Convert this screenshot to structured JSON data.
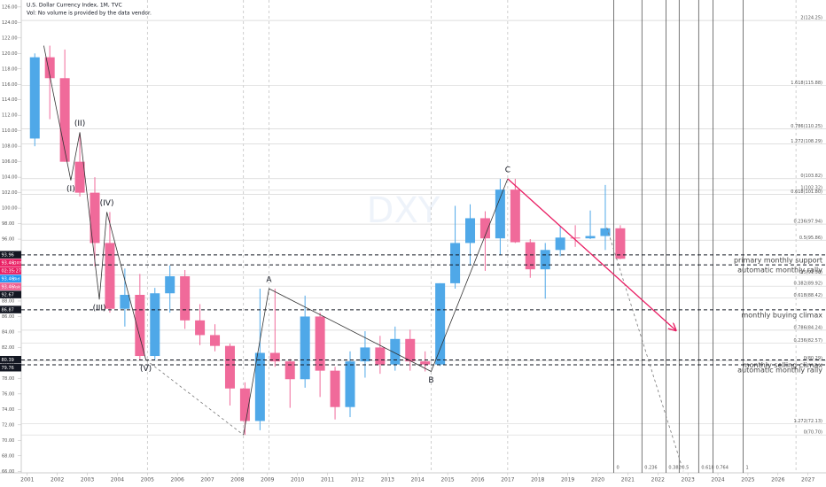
{
  "chart_data": {
    "type": "candlestick",
    "title": "U.S. Dollar Currency Index, 1M, TVC",
    "subtitle": "Vol: No volume is provided by the data vendor.",
    "watermark": "DXY",
    "up_color": "#4fa8e8",
    "down_color": "#f06a9a",
    "xlim": [
      2000.8,
      2027.6
    ],
    "ylim": [
      65.8,
      126.9
    ],
    "xticks": [
      2001,
      2002,
      2003,
      2004,
      2005,
      2006,
      2007,
      2008,
      2009,
      2010,
      2011,
      2012,
      2013,
      2014,
      2015,
      2016,
      2017,
      2018,
      2019,
      2020,
      2021,
      2022,
      2023,
      2024,
      2025,
      2026,
      2027
    ],
    "yticks": [
      {
        "value": 66,
        "label": "66.00"
      },
      {
        "value": 68,
        "label": "68.00"
      },
      {
        "value": 70,
        "label": "70.00"
      },
      {
        "value": 72,
        "label": "72.00"
      },
      {
        "value": 74,
        "label": "74.00"
      },
      {
        "value": 76,
        "label": "76.00"
      },
      {
        "value": 78,
        "label": "78.00"
      },
      {
        "value": 80,
        "label": "80.00"
      },
      {
        "value": 82,
        "label": "82.00"
      },
      {
        "value": 84,
        "label": "84.00"
      },
      {
        "value": 86,
        "label": "86.00"
      },
      {
        "value": 88,
        "label": "88.00"
      },
      {
        "value": 90,
        "label": "90.00"
      },
      {
        "value": 92,
        "label": "92.00"
      },
      {
        "value": 94,
        "label": "94.00"
      },
      {
        "value": 96,
        "label": "96.00"
      },
      {
        "value": 98,
        "label": "98.00"
      },
      {
        "value": 100,
        "label": "100.00"
      },
      {
        "value": 102,
        "label": "102.00"
      },
      {
        "value": 104,
        "label": "104.00"
      },
      {
        "value": 106,
        "label": "106.00"
      },
      {
        "value": 108,
        "label": "108.00"
      },
      {
        "value": 110,
        "label": "110.00"
      },
      {
        "value": 112,
        "label": "112.00"
      },
      {
        "value": 114,
        "label": "114.00"
      },
      {
        "value": 116,
        "label": "116.00"
      },
      {
        "value": 118,
        "label": "118.00"
      },
      {
        "value": 120,
        "label": "120.00"
      },
      {
        "value": 122,
        "label": "122.00"
      },
      {
        "value": 124,
        "label": "124.00"
      },
      {
        "value": 126,
        "label": "126.00"
      }
    ],
    "candles": {
      "x": [
        2001,
        2001.5,
        2002,
        2002.5,
        2003,
        2003.5,
        2004,
        2004.5,
        2005,
        2005.5,
        2006,
        2006.5,
        2007,
        2007.5,
        2008,
        2008.5,
        2009,
        2009.5,
        2010,
        2010.5,
        2011,
        2011.5,
        2012,
        2012.5,
        2013,
        2013.5,
        2014,
        2014.5,
        2015,
        2015.5,
        2016,
        2016.5,
        2017,
        2017.5,
        2018,
        2018.5,
        2019,
        2019.5,
        2020,
        2020.5
      ],
      "open": [
        109.0,
        119.5,
        116.8,
        106.0,
        102.0,
        95.5,
        87.0,
        88.8,
        80.9,
        89.0,
        91.2,
        85.5,
        83.6,
        82.2,
        76.7,
        72.5,
        81.3,
        80.2,
        77.9,
        86.0,
        79.0,
        74.3,
        80.2,
        82.0,
        79.8,
        83.1,
        80.2,
        79.8,
        90.3,
        95.5,
        98.7,
        96.1,
        102.4,
        95.6,
        92.1,
        94.6,
        96.2,
        96.1,
        96.4,
        97.4
      ],
      "high": [
        120.0,
        121.0,
        120.5,
        109.8,
        104.0,
        99.5,
        92.2,
        91.5,
        89.7,
        92.6,
        92.0,
        87.6,
        85.0,
        82.5,
        77.5,
        89.6,
        89.6,
        80.5,
        88.7,
        86.5,
        79.5,
        81.5,
        84.1,
        83.5,
        84.7,
        84.3,
        81.5,
        90.3,
        100.3,
        100.5,
        99.6,
        103.8,
        103.8,
        96.0,
        95.5,
        97.7,
        97.8,
        99.7,
        103.0,
        97.8
      ],
      "low": [
        108.0,
        111.5,
        106.0,
        101.5,
        92.5,
        86.5,
        84.7,
        80.4,
        80.4,
        86.5,
        84.4,
        82.3,
        81.5,
        74.5,
        70.7,
        71.3,
        79.5,
        74.2,
        76.8,
        75.6,
        72.7,
        73.0,
        78.1,
        78.6,
        79.0,
        79.0,
        78.9,
        79.6,
        89.6,
        92.6,
        91.9,
        94.0,
        95.5,
        91.0,
        88.3,
        93.8,
        95.0,
        96.0,
        94.6,
        93.4
      ],
      "close": [
        119.5,
        116.8,
        106.0,
        102.0,
        95.5,
        87.0,
        88.8,
        80.9,
        89.0,
        91.2,
        85.5,
        83.6,
        82.2,
        76.7,
        72.5,
        81.3,
        80.2,
        77.9,
        86.0,
        79.0,
        74.3,
        80.2,
        82.0,
        79.8,
        83.1,
        80.2,
        79.8,
        90.3,
        95.5,
        98.7,
        96.1,
        102.4,
        95.6,
        92.1,
        94.6,
        96.2,
        96.1,
        96.4,
        97.4,
        93.46
      ]
    },
    "fib_levels": [
      {
        "value": 124.25,
        "label": "2(124.25)"
      },
      {
        "value": 115.88,
        "label": "1.618(115.88)"
      },
      {
        "value": 110.25,
        "label": "0.786(110.25)"
      },
      {
        "value": 108.29,
        "label": "1.272(108.29)"
      },
      {
        "value": 103.82,
        "label": "0(103.82)"
      },
      {
        "value": 102.32,
        "label": "1(102.32)"
      },
      {
        "value": 101.8,
        "label": "0.618(101.80)"
      },
      {
        "value": 97.94,
        "label": "0.236(97.94)"
      },
      {
        "value": 95.86,
        "label": "0.5(95.86)"
      },
      {
        "value": 91.36,
        "label": "0.5(91.36)"
      },
      {
        "value": 89.92,
        "label": "0.382(89.92)"
      },
      {
        "value": 88.42,
        "label": "0.618(88.42)"
      },
      {
        "value": 84.24,
        "label": "0.786(84.24)"
      },
      {
        "value": 82.57,
        "label": "0.236(82.57)"
      },
      {
        "value": 80.29,
        "label": "0(80.29)"
      },
      {
        "value": 72.13,
        "label": "1.272(72.13)"
      },
      {
        "value": 70.7,
        "label": "0(70.70)"
      }
    ],
    "levels": [
      {
        "value": 93.96
      },
      {
        "value": 92.67,
        "labels": [
          "primary monthly support",
          "automatic monthly rally"
        ]
      },
      {
        "value": 86.87,
        "labels": [
          "monthly buying climax"
        ]
      },
      {
        "value": 80.39,
        "labels": [
          "monthly selling climax"
        ]
      },
      {
        "value": 79.76,
        "labels": [
          "automatic monthly rally"
        ]
      }
    ],
    "price_tags": [
      {
        "value": 93.96,
        "color": "#131722"
      },
      {
        "value": 93.46,
        "name": "DXY",
        "color": "#e91e63"
      },
      {
        "text": "02:35:27",
        "color": "#e91e63"
      },
      {
        "value": 93.46,
        "name": "Bid",
        "color": "#2196f3"
      },
      {
        "value": 93.46,
        "name": "Ask",
        "color": "#f06292"
      },
      {
        "value": 92.67,
        "color": "#131722"
      },
      {
        "value": 86.87,
        "color": "#131722"
      },
      {
        "value": 80.39,
        "color": "#131722"
      },
      {
        "value": 79.76,
        "color": "#131722"
      }
    ],
    "wave_lines": [
      {
        "style": "solid",
        "x": [
          2001.55,
          2002.45,
          2002.75,
          2003.4,
          2003.65,
          2004.95
        ],
        "y": [
          121.0,
          103.6,
          109.8,
          88.2,
          99.5,
          80.4
        ],
        "labels": [
          null,
          "(I)",
          "(II)",
          "(III)",
          "(IV)",
          "(V)"
        ]
      },
      {
        "style": "dashed",
        "x": [
          2004.95,
          2008.2
        ],
        "y": [
          80.4,
          70.7
        ],
        "labels": [
          null,
          null
        ]
      },
      {
        "style": "solid",
        "x": [
          2008.2,
          2009.05,
          2014.45,
          2017.0
        ],
        "y": [
          70.7,
          89.6,
          78.9,
          103.8
        ],
        "labels": [
          null,
          "A",
          "B",
          "C"
        ]
      }
    ],
    "arrow": {
      "color": "#e91e63",
      "x": [
        2017.0,
        2022.6
      ],
      "y": [
        103.8,
        84.2
      ]
    },
    "projection": {
      "x": [
        2020.3,
        2022.85
      ],
      "y": [
        97.5,
        66.0
      ]
    },
    "separators": [
      2005.0,
      2008.2,
      2009.05,
      2014.45,
      2017.0,
      2026.6
    ],
    "time_fibs": [
      {
        "ratio": 0,
        "x": 2020.53
      },
      {
        "ratio": 0.236,
        "x": 2021.47
      },
      {
        "ratio": 0.382,
        "x": 2022.27
      },
      {
        "ratio": 0.5,
        "x": 2022.71
      },
      {
        "ratio": 0.618,
        "x": 2023.36
      },
      {
        "ratio": 0.764,
        "x": 2023.84
      },
      {
        "ratio": 1,
        "x": 2024.84
      }
    ]
  }
}
